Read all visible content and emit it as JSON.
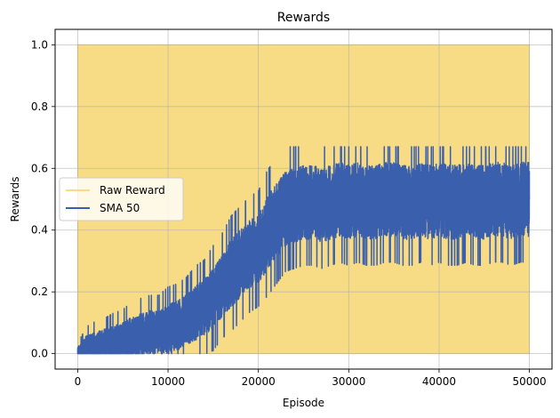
{
  "chart_data": {
    "type": "line",
    "title": "Rewards",
    "xlabel": "Episode",
    "ylabel": "Rewards",
    "xlim": [
      -2500,
      52500
    ],
    "ylim": [
      -0.05,
      1.05
    ],
    "x_ticks": [
      0,
      10000,
      20000,
      30000,
      40000,
      50000
    ],
    "x_tick_labels": [
      "0",
      "10000",
      "20000",
      "30000",
      "40000",
      "50000"
    ],
    "y_ticks": [
      0.0,
      0.2,
      0.4,
      0.6,
      0.8,
      1.0
    ],
    "y_tick_labels": [
      "0.0",
      "0.2",
      "0.4",
      "0.6",
      "0.8",
      "1.0"
    ],
    "grid": true,
    "legend_position": "center-left",
    "series": [
      {
        "name": "Raw Reward",
        "color": "#f7dc85",
        "style": "binary 0/1 values, rendered as a dense filled band between 0 and 1",
        "x_range": [
          0,
          50000
        ],
        "min": 0.0,
        "max": 1.0
      },
      {
        "name": "SMA 50",
        "color": "#3a5fad",
        "x": [
          0,
          1000,
          2000,
          3000,
          4000,
          5000,
          6000,
          7000,
          8000,
          9000,
          10000,
          11000,
          12000,
          13000,
          14000,
          15000,
          16000,
          17000,
          18000,
          19000,
          20000,
          21000,
          22000,
          23000,
          24000,
          25000,
          26000,
          27000,
          28000,
          29000,
          30000,
          31000,
          32000,
          33000,
          34000,
          35000,
          36000,
          37000,
          38000,
          39000,
          40000,
          41000,
          42000,
          43000,
          44000,
          45000,
          46000,
          47000,
          48000,
          49000,
          50000
        ],
        "values": [
          0.0,
          0.02,
          0.02,
          0.03,
          0.03,
          0.04,
          0.05,
          0.06,
          0.07,
          0.07,
          0.08,
          0.09,
          0.11,
          0.13,
          0.15,
          0.18,
          0.22,
          0.26,
          0.29,
          0.32,
          0.34,
          0.39,
          0.43,
          0.47,
          0.48,
          0.49,
          0.49,
          0.48,
          0.49,
          0.5,
          0.49,
          0.5,
          0.49,
          0.49,
          0.5,
          0.5,
          0.49,
          0.49,
          0.5,
          0.49,
          0.5,
          0.49,
          0.49,
          0.5,
          0.49,
          0.49,
          0.5,
          0.5,
          0.49,
          0.5,
          0.5
        ],
        "spread": [
          0.02,
          0.04,
          0.05,
          0.05,
          0.06,
          0.06,
          0.07,
          0.07,
          0.07,
          0.07,
          0.08,
          0.08,
          0.08,
          0.09,
          0.09,
          0.1,
          0.1,
          0.11,
          0.11,
          0.11,
          0.11,
          0.12,
          0.12,
          0.12,
          0.12,
          0.12,
          0.12,
          0.12,
          0.12,
          0.12,
          0.12,
          0.12,
          0.12,
          0.12,
          0.12,
          0.12,
          0.12,
          0.12,
          0.12,
          0.12,
          0.12,
          0.12,
          0.12,
          0.12,
          0.12,
          0.12,
          0.12,
          0.12,
          0.12,
          0.12,
          0.12
        ]
      }
    ]
  }
}
